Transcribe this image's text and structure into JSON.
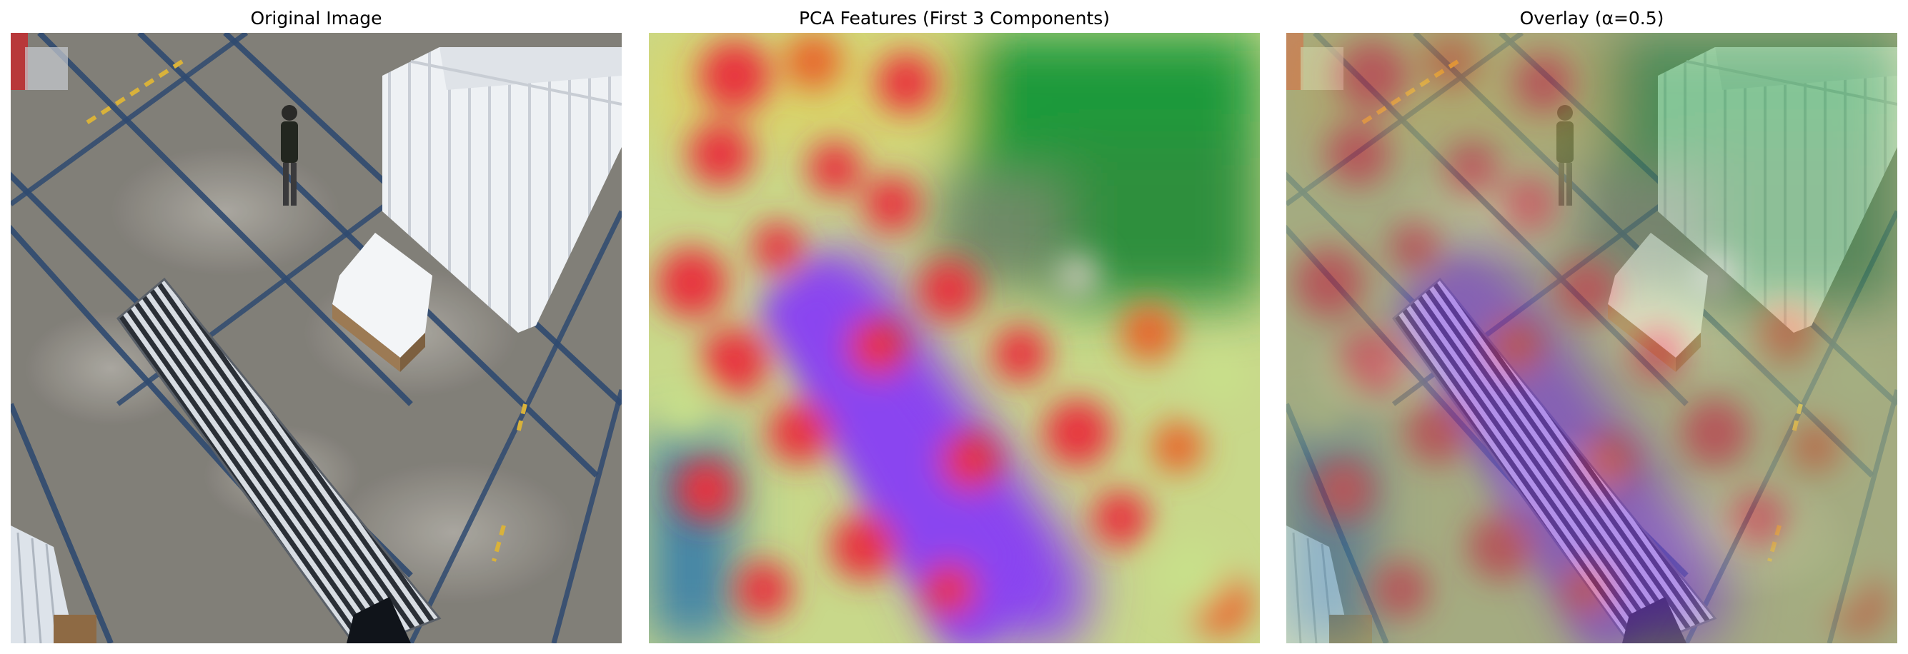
{
  "figure": {
    "panels": [
      {
        "title": "Original Image"
      },
      {
        "title": "PCA Features (First 3 Components)"
      },
      {
        "title": "Overlay (α=0.5)"
      }
    ],
    "overlay_alpha": 0.5
  },
  "colors": {
    "floor": "#8a8780",
    "floor_dark": "#6f6c66",
    "lane_line": "#2f4a70",
    "yellow_mark": "#d9b23a",
    "white_structure": "#eef1f4",
    "pca_red": "#e8323c",
    "pca_green": "#1b9a3a",
    "pca_purple": "#8a45f0",
    "pca_yellow_green": "#c8e08a",
    "pca_orange": "#e8632a"
  }
}
